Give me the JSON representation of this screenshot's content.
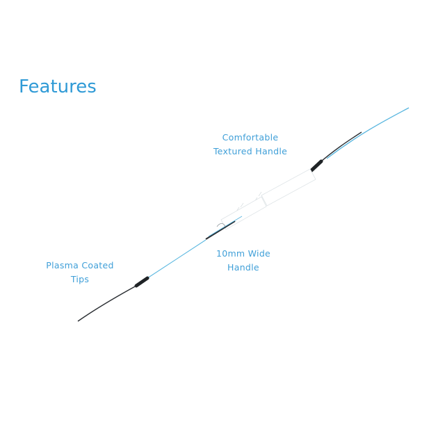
{
  "header": {
    "title": "Features"
  },
  "callouts": [
    {
      "line1": "Comfortable",
      "line2": "Textured Handle"
    },
    {
      "line1": "10mm Wide",
      "line2": "Handle"
    },
    {
      "line1": "Plasma Coated",
      "line2": "Tips"
    }
  ],
  "colors": {
    "accent": "#2f9ad6",
    "instrument": "#2b2f33",
    "handle_outline": "#cfd6da"
  }
}
